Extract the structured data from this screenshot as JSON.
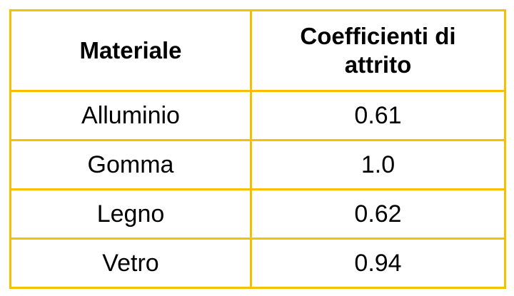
{
  "table": {
    "header": {
      "material": "Materiale",
      "friction_line1": "Coefficienti di",
      "friction_line2": "attrito"
    },
    "rows": [
      {
        "material": "Alluminio",
        "coefficient": "0.61"
      },
      {
        "material": "Gomma",
        "coefficient": "1.0"
      },
      {
        "material": "Legno",
        "coefficient": "0.62"
      },
      {
        "material": "Vetro",
        "coefficient": "0.94"
      }
    ]
  },
  "colors": {
    "border": "#f5c000",
    "text": "#000000",
    "background": "#ffffff"
  }
}
